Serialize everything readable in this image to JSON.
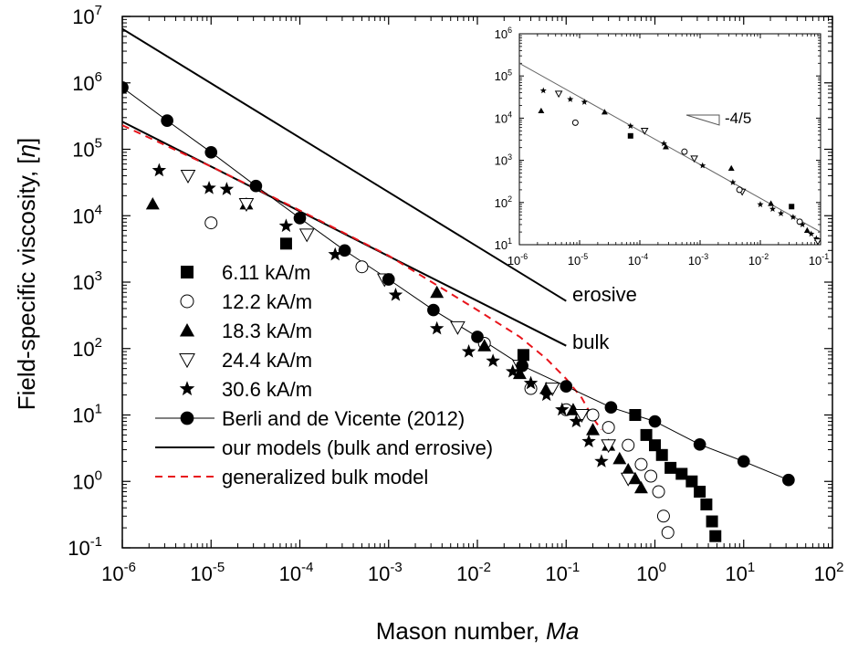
{
  "chart_data": {
    "type": "scatter",
    "x_scale": "log",
    "y_scale": "log",
    "xlabel": "Mason number, ",
    "xlabel_italic": "Ma",
    "ylabel": "Field-specific viscosity, [",
    "ylabel_symbol": "η",
    "ylabel_close": "]",
    "xlim": [
      1e-06,
      100
    ],
    "ylim": [
      0.1,
      10000000.0
    ],
    "x_ticks": [
      {
        "value": 1e-06,
        "base": "10",
        "exp": "-6"
      },
      {
        "value": 1e-05,
        "base": "10",
        "exp": "-5"
      },
      {
        "value": 0.0001,
        "base": "10",
        "exp": "-4"
      },
      {
        "value": 0.001,
        "base": "10",
        "exp": "-3"
      },
      {
        "value": 0.01,
        "base": "10",
        "exp": "-2"
      },
      {
        "value": 0.1,
        "base": "10",
        "exp": "-1"
      },
      {
        "value": 1,
        "base": "10",
        "exp": "0"
      },
      {
        "value": 10,
        "base": "10",
        "exp": "1"
      },
      {
        "value": 100,
        "base": "10",
        "exp": "2"
      }
    ],
    "y_ticks": [
      {
        "value": 0.1,
        "base": "10",
        "exp": "-1"
      },
      {
        "value": 1,
        "base": "10",
        "exp": "0"
      },
      {
        "value": 10,
        "base": "10",
        "exp": "1"
      },
      {
        "value": 100,
        "base": "10",
        "exp": "2"
      },
      {
        "value": 1000,
        "base": "10",
        "exp": "3"
      },
      {
        "value": 10000.0,
        "base": "10",
        "exp": "4"
      },
      {
        "value": 100000.0,
        "base": "10",
        "exp": "5"
      },
      {
        "value": 1000000.0,
        "base": "10",
        "exp": "6"
      },
      {
        "value": 10000000.0,
        "base": "10",
        "exp": "7"
      }
    ],
    "series": [
      {
        "name": "6.11 kA/m",
        "marker": "square",
        "color": "#000000",
        "x": [
          7e-05,
          0.033,
          0.6,
          0.8,
          1.0,
          1.2,
          1.5,
          2.0,
          2.6,
          3.2,
          3.8,
          4.4,
          4.8
        ],
        "y": [
          3800,
          80,
          10,
          5,
          3.5,
          2.5,
          1.6,
          1.3,
          1.0,
          0.7,
          0.45,
          0.25,
          0.15
        ]
      },
      {
        "name": "12.2 kA/m",
        "marker": "circle-open",
        "color": "#000000",
        "x": [
          1e-05,
          0.0005,
          0.012,
          0.04,
          0.1,
          0.2,
          0.3,
          0.5,
          0.7,
          0.9,
          1.1,
          1.25,
          1.4
        ],
        "y": [
          7800,
          1700,
          120,
          25,
          12,
          10,
          6.5,
          3.5,
          1.8,
          1.2,
          0.7,
          0.3,
          0.17
        ]
      },
      {
        "name": "18.3 kA/m",
        "marker": "triangle-up",
        "color": "#000000",
        "x": [
          2.2e-06,
          2.5e-05,
          0.0035,
          0.012,
          0.03,
          0.06,
          0.12,
          0.2,
          0.3,
          0.4,
          0.5,
          0.6,
          0.7
        ],
        "y": [
          15000,
          15000,
          700,
          110,
          42,
          25,
          12,
          6,
          3.5,
          2.2,
          1.5,
          1.1,
          0.8
        ]
      },
      {
        "name": "24.4 kA/m",
        "marker": "triangle-down-open",
        "color": "#000000",
        "x": [
          5.5e-06,
          2.5e-05,
          0.00012,
          0.0009,
          0.006,
          0.03,
          0.07,
          0.15,
          0.3,
          0.5
        ],
        "y": [
          40000,
          15000,
          5200,
          1100,
          210,
          55,
          25,
          10,
          3.5,
          1.1
        ]
      },
      {
        "name": "30.6 kA/m",
        "marker": "star",
        "color": "#000000",
        "x": [
          2.6e-06,
          9.5e-06,
          1.5e-05,
          7e-05,
          0.00025,
          0.0012,
          0.0035,
          0.008,
          0.015,
          0.025,
          0.04,
          0.06,
          0.09,
          0.13,
          0.18,
          0.25
        ],
        "y": [
          48000,
          26000,
          25000,
          7000,
          2600,
          640,
          200,
          90,
          65,
          45,
          30,
          20,
          12,
          8,
          4,
          2
        ]
      },
      {
        "name": "Berli and de Vicente (2012)",
        "marker": "circle-line",
        "color": "#000000",
        "x": [
          1e-06,
          3.2e-06,
          1e-05,
          3.2e-05,
          0.0001,
          0.00032,
          0.001,
          0.0032,
          0.01,
          0.032,
          0.1,
          0.32,
          1,
          3.2,
          10,
          32
        ],
        "y": [
          850000,
          270000,
          90000,
          28000,
          9200,
          3000,
          1100,
          380,
          150,
          55,
          27,
          13,
          8,
          3.6,
          2.0,
          1.05
        ]
      }
    ],
    "model_lines": [
      {
        "name": "our models (bulk and errosive)",
        "label": "erosive",
        "style": "solid",
        "color": "#000000",
        "x": [
          1e-06,
          0.1
        ],
        "y": [
          6500000,
          520
        ]
      },
      {
        "name": "our models (bulk and errosive)",
        "label": "bulk",
        "style": "solid",
        "color": "#000000",
        "x": [
          1e-06,
          0.1
        ],
        "y": [
          260000,
          110
        ]
      },
      {
        "name": "generalized bulk model",
        "label": "",
        "style": "dashed",
        "color": "#e8141b",
        "x": [
          1e-06,
          1e-05,
          0.0001,
          0.001,
          0.01,
          0.03,
          0.06,
          0.1,
          0.15,
          0.2,
          0.25
        ],
        "y": [
          230000,
          55000,
          12000,
          2500,
          380,
          150,
          70,
          35,
          18,
          9,
          6
        ]
      }
    ],
    "legend": {
      "placement": "bottom-left",
      "entries": [
        {
          "label": "6.11 kA/m",
          "marker": "square"
        },
        {
          "label": "12.2 kA/m",
          "marker": "circle-open"
        },
        {
          "label": "18.3 kA/m",
          "marker": "triangle-up"
        },
        {
          "label": "24.4 kA/m",
          "marker": "triangle-down-open"
        },
        {
          "label": "30.6 kA/m",
          "marker": "star"
        },
        {
          "label": "Berli and de Vicente (2012)",
          "marker": "circle-line"
        },
        {
          "label": "our models (bulk and errosive)",
          "marker": "solid-line"
        },
        {
          "label": "generalized bulk model",
          "marker": "dashed-red"
        }
      ]
    },
    "inset": {
      "placement": "top-right",
      "x_scale": "log",
      "y_scale": "log",
      "xlim": [
        1e-06,
        0.1
      ],
      "ylim": [
        10,
        1000000.0
      ],
      "x_ticks": [
        {
          "value": 1e-06,
          "base": "10",
          "exp": "-6"
        },
        {
          "value": 1e-05,
          "base": "10",
          "exp": "-5"
        },
        {
          "value": 0.0001,
          "base": "10",
          "exp": "-4"
        },
        {
          "value": 0.001,
          "base": "10",
          "exp": "-3"
        },
        {
          "value": 0.01,
          "base": "10",
          "exp": "-2"
        },
        {
          "value": 0.1,
          "base": "10",
          "exp": "-1"
        }
      ],
      "y_ticks": [
        {
          "value": 10,
          "base": "10",
          "exp": "1"
        },
        {
          "value": 100,
          "base": "10",
          "exp": "2"
        },
        {
          "value": 1000,
          "base": "10",
          "exp": "3"
        },
        {
          "value": 10000.0,
          "base": "10",
          "exp": "4"
        },
        {
          "value": 100000.0,
          "base": "10",
          "exp": "5"
        },
        {
          "value": 1000000.0,
          "base": "10",
          "exp": "6"
        }
      ],
      "slope_label": "-4/5",
      "fit_line": {
        "x": [
          1e-06,
          0.1
        ],
        "y": [
          200000,
          20
        ]
      },
      "points": [
        {
          "marker": "star",
          "x": 2.5e-06,
          "y": 45000
        },
        {
          "marker": "triangle-down-open",
          "x": 4.5e-06,
          "y": 38000
        },
        {
          "marker": "triangle-up",
          "x": 2.3e-06,
          "y": 15000
        },
        {
          "marker": "circle-open",
          "x": 8.5e-06,
          "y": 7800
        },
        {
          "marker": "star",
          "x": 7e-06,
          "y": 28000
        },
        {
          "marker": "star",
          "x": 1.2e-05,
          "y": 24000
        },
        {
          "marker": "triangle-up",
          "x": 2.6e-05,
          "y": 14000
        },
        {
          "marker": "square",
          "x": 7e-05,
          "y": 3800
        },
        {
          "marker": "star",
          "x": 7e-05,
          "y": 6500
        },
        {
          "marker": "triangle-down-open",
          "x": 0.00012,
          "y": 5000
        },
        {
          "marker": "star",
          "x": 0.00025,
          "y": 2500
        },
        {
          "marker": "triangle-up",
          "x": 0.00027,
          "y": 2100
        },
        {
          "marker": "circle-open",
          "x": 0.00055,
          "y": 1600
        },
        {
          "marker": "triangle-down-open",
          "x": 0.0008,
          "y": 1100
        },
        {
          "marker": "star",
          "x": 0.0011,
          "y": 750
        },
        {
          "marker": "triangle-up",
          "x": 0.0033,
          "y": 650
        },
        {
          "marker": "star",
          "x": 0.0035,
          "y": 300
        },
        {
          "marker": "triangle-down-open",
          "x": 0.005,
          "y": 180
        },
        {
          "marker": "circle-open",
          "x": 0.0045,
          "y": 200
        },
        {
          "marker": "star",
          "x": 0.01,
          "y": 90
        },
        {
          "marker": "star",
          "x": 0.016,
          "y": 70
        },
        {
          "marker": "triangle-up",
          "x": 0.015,
          "y": 95
        },
        {
          "marker": "star",
          "x": 0.022,
          "y": 55
        },
        {
          "marker": "square",
          "x": 0.033,
          "y": 80
        },
        {
          "marker": "star",
          "x": 0.035,
          "y": 45
        },
        {
          "marker": "circle-open",
          "x": 0.045,
          "y": 35
        },
        {
          "marker": "star",
          "x": 0.05,
          "y": 30
        },
        {
          "marker": "triangle-up",
          "x": 0.06,
          "y": 22
        },
        {
          "marker": "star",
          "x": 0.07,
          "y": 18
        },
        {
          "marker": "star",
          "x": 0.085,
          "y": 14
        },
        {
          "marker": "triangle-down-open",
          "x": 0.09,
          "y": 12
        }
      ]
    }
  }
}
